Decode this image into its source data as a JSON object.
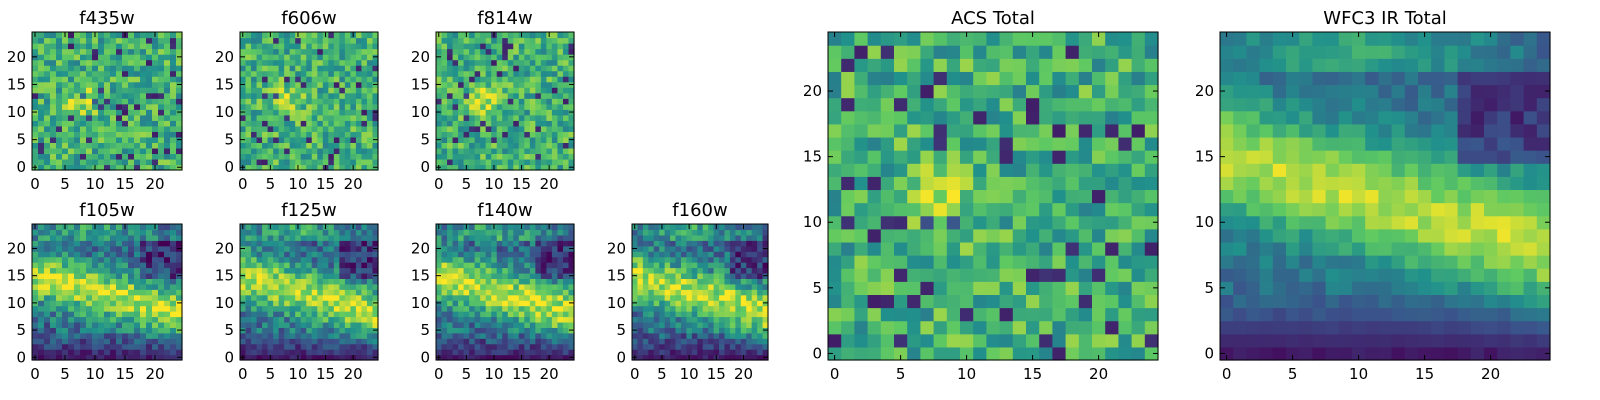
{
  "figure": {
    "colormap": "viridis",
    "colormap_stops": [
      "#440154",
      "#3b528b",
      "#21918c",
      "#5ec962",
      "#fde725"
    ]
  },
  "chart_data": [
    {
      "type": "heatmap",
      "title": "f435w",
      "grid_size": 25,
      "xlim": [
        -0.5,
        24.5
      ],
      "ylim": [
        -0.5,
        24.5
      ],
      "x_ticks": [
        0,
        5,
        10,
        15,
        20
      ],
      "y_ticks": [
        0,
        5,
        10,
        15,
        20
      ],
      "grid": false,
      "pattern": "noisy"
    },
    {
      "type": "heatmap",
      "title": "f606w",
      "grid_size": 25,
      "xlim": [
        -0.5,
        24.5
      ],
      "ylim": [
        -0.5,
        24.5
      ],
      "x_ticks": [
        0,
        5,
        10,
        15,
        20
      ],
      "y_ticks": [
        0,
        5,
        10,
        15,
        20
      ],
      "grid": false,
      "pattern": "noisy"
    },
    {
      "type": "heatmap",
      "title": "f814w",
      "grid_size": 25,
      "xlim": [
        -0.5,
        24.5
      ],
      "ylim": [
        -0.5,
        24.5
      ],
      "x_ticks": [
        0,
        5,
        10,
        15,
        20
      ],
      "y_ticks": [
        0,
        5,
        10,
        15,
        20
      ],
      "grid": false,
      "pattern": "noisy"
    },
    {
      "type": "heatmap",
      "title": "f105w",
      "grid_size": 25,
      "xlim": [
        -0.5,
        24.5
      ],
      "ylim": [
        -0.5,
        24.5
      ],
      "x_ticks": [
        0,
        5,
        10,
        15,
        20
      ],
      "y_ticks": [
        0,
        5,
        10,
        15,
        20
      ],
      "grid": false,
      "pattern": "band"
    },
    {
      "type": "heatmap",
      "title": "f125w",
      "grid_size": 25,
      "xlim": [
        -0.5,
        24.5
      ],
      "ylim": [
        -0.5,
        24.5
      ],
      "x_ticks": [
        0,
        5,
        10,
        15,
        20
      ],
      "y_ticks": [
        0,
        5,
        10,
        15,
        20
      ],
      "grid": false,
      "pattern": "band"
    },
    {
      "type": "heatmap",
      "title": "f140w",
      "grid_size": 25,
      "xlim": [
        -0.5,
        24.5
      ],
      "ylim": [
        -0.5,
        24.5
      ],
      "x_ticks": [
        0,
        5,
        10,
        15,
        20
      ],
      "y_ticks": [
        0,
        5,
        10,
        15,
        20
      ],
      "grid": false,
      "pattern": "band"
    },
    {
      "type": "heatmap",
      "title": "f160w",
      "grid_size": 25,
      "xlim": [
        -0.5,
        24.5
      ],
      "ylim": [
        -0.5,
        24.5
      ],
      "x_ticks": [
        0,
        5,
        10,
        15,
        20
      ],
      "y_ticks": [
        0,
        5,
        10,
        15,
        20
      ],
      "grid": false,
      "pattern": "band"
    },
    {
      "type": "heatmap",
      "title": "ACS Total",
      "grid_size": 25,
      "xlim": [
        -0.5,
        24.5
      ],
      "ylim": [
        -0.5,
        24.5
      ],
      "x_ticks": [
        0,
        5,
        10,
        15,
        20
      ],
      "y_ticks": [
        0,
        5,
        10,
        15,
        20
      ],
      "grid": false,
      "pattern": "noisy"
    },
    {
      "type": "heatmap",
      "title": "WFC3 IR Total",
      "grid_size": 25,
      "xlim": [
        -0.5,
        24.5
      ],
      "ylim": [
        -0.5,
        24.5
      ],
      "x_ticks": [
        0,
        5,
        10,
        15,
        20
      ],
      "y_ticks": [
        0,
        5,
        10,
        15,
        20
      ],
      "grid": false,
      "pattern": "smooth_band"
    }
  ]
}
